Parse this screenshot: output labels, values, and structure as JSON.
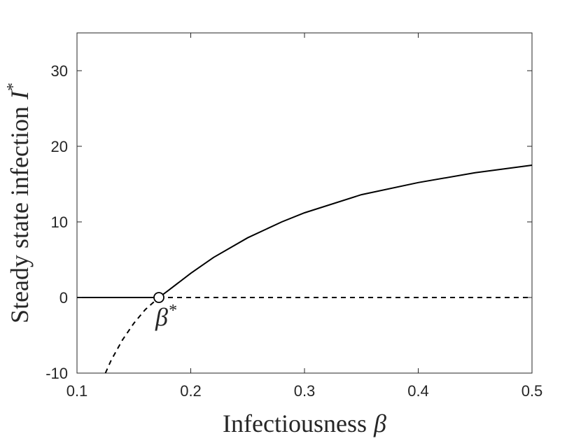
{
  "chart_data": {
    "type": "line",
    "xlabel": "Infectiousness",
    "xlabel_symbol": "β",
    "ylabel": "Steady state infection",
    "ylabel_symbol": "I",
    "ylabel_superscript": "*",
    "xlim": [
      0.1,
      0.5
    ],
    "ylim": [
      -10,
      35
    ],
    "x_ticks": [
      {
        "value": 0.1,
        "label": "0.1"
      },
      {
        "value": 0.2,
        "label": "0.2"
      },
      {
        "value": 0.3,
        "label": "0.3"
      },
      {
        "value": 0.4,
        "label": "0.4"
      },
      {
        "value": 0.5,
        "label": "0.5"
      }
    ],
    "y_ticks": [
      {
        "value": -10,
        "label": "-10"
      },
      {
        "value": 0,
        "label": "0"
      },
      {
        "value": 10,
        "label": "10"
      },
      {
        "value": 20,
        "label": "20"
      },
      {
        "value": 30,
        "label": "30"
      }
    ],
    "grid": false,
    "series": [
      {
        "style": "solid",
        "x": [
          0.1,
          0.172
        ],
        "y": [
          0,
          0
        ]
      },
      {
        "style": "solid",
        "x": [
          0.172,
          0.18,
          0.2,
          0.22,
          0.25,
          0.28,
          0.3,
          0.35,
          0.4,
          0.45,
          0.5
        ],
        "y": [
          0,
          0.9,
          3.2,
          5.3,
          7.9,
          10.0,
          11.2,
          13.6,
          15.2,
          16.5,
          17.5
        ]
      },
      {
        "style": "dashed",
        "x": [
          0.172,
          0.5
        ],
        "y": [
          0,
          0
        ]
      },
      {
        "style": "dashed",
        "x": [
          0.125,
          0.13,
          0.14,
          0.15,
          0.16,
          0.172
        ],
        "y": [
          -10,
          -8.3,
          -5.6,
          -3.4,
          -1.6,
          0
        ]
      }
    ],
    "markers": [
      {
        "x": 0.172,
        "y": 0,
        "shape": "open-circle"
      }
    ],
    "annotations": [
      {
        "x": 0.172,
        "y": 0,
        "symbol": "β",
        "superscript": "*"
      }
    ]
  }
}
